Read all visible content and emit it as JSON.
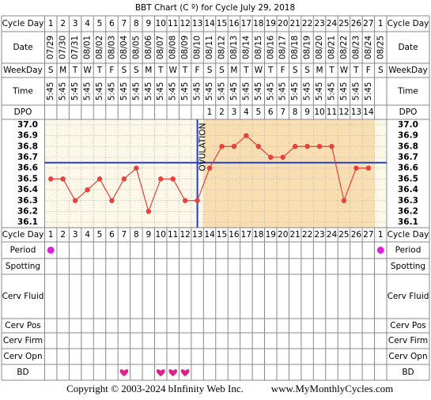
{
  "title": "BBT Chart (C º) for Cycle July 29, 2018",
  "row_labels": {
    "cycle_day": "Cycle Day",
    "date": "Date",
    "weekday": "WeekDay",
    "time": "Time",
    "dpo": "DPO",
    "period": "Period",
    "spotting": "Spotting",
    "cerv_fluid": "Cerv Fluid",
    "cerv_pos": "Cerv Pos",
    "cerv_firm": "Cerv Firm",
    "cerv_opn": "Cerv Opn",
    "bd": "BD"
  },
  "cycle_days": [
    1,
    2,
    3,
    4,
    5,
    6,
    7,
    8,
    9,
    10,
    11,
    12,
    13,
    14,
    15,
    16,
    17,
    18,
    19,
    20,
    21,
    22,
    23,
    24,
    25,
    26,
    27,
    1
  ],
  "dates": [
    "07/29",
    "07/30",
    "07/31",
    "08/01",
    "08/02",
    "08/03",
    "08/04",
    "08/05",
    "08/06",
    "08/07",
    "08/08",
    "08/09",
    "08/10",
    "08/11",
    "08/12",
    "08/13",
    "08/14",
    "08/15",
    "08/16",
    "08/17",
    "08/18",
    "08/19",
    "08/20",
    "08/21",
    "08/22",
    "08/23",
    "08/24",
    "08/25"
  ],
  "weekdays": [
    "S",
    "M",
    "T",
    "W",
    "T",
    "F",
    "S",
    "S",
    "M",
    "T",
    "W",
    "T",
    "F",
    "S",
    "S",
    "M",
    "T",
    "W",
    "T",
    "F",
    "S",
    "S",
    "M",
    "T",
    "W",
    "T",
    "F",
    "S"
  ],
  "times": [
    "5:45",
    "5:45",
    "5:45",
    "5:45",
    "5:45",
    "5:45",
    "5:45",
    "5:45",
    "5:45",
    "5:45",
    "5:45",
    "5:45",
    "5:45",
    "5:45",
    "5:45",
    "5:45",
    "5:45",
    "5:45",
    "5:45",
    "5:45",
    "5:45",
    "5:45",
    "5:45",
    "5:45",
    "5:45",
    "5:45",
    "5:45",
    null
  ],
  "dpo": [
    null,
    null,
    null,
    null,
    null,
    null,
    null,
    null,
    null,
    null,
    null,
    null,
    null,
    1,
    2,
    3,
    4,
    5,
    6,
    7,
    8,
    9,
    10,
    11,
    12,
    13,
    14,
    null
  ],
  "chart_data": {
    "type": "line",
    "color": "#e8403c",
    "values": [
      36.5,
      36.5,
      36.3,
      36.4,
      36.5,
      36.3,
      36.5,
      36.6,
      36.2,
      36.5,
      36.5,
      36.3,
      36.3,
      36.6,
      36.8,
      36.8,
      36.9,
      36.8,
      36.7,
      36.7,
      36.8,
      36.8,
      36.8,
      36.8,
      36.3,
      36.6,
      36.6,
      null
    ],
    "ylim": [
      36.05,
      37.05
    ],
    "yticks": [
      {
        "value": 37.0,
        "label": "37.0"
      },
      36.9,
      36.8,
      36.7,
      36.6,
      36.5,
      36.4,
      36.3,
      36.2,
      36.1
    ],
    "grid": true,
    "coverline": 36.65,
    "coverline_color": "#1f3fd0",
    "ovulation_label": "OVULATION",
    "ovulation_day": 13
  },
  "period": [
    true,
    false,
    false,
    false,
    false,
    false,
    false,
    false,
    false,
    false,
    false,
    false,
    false,
    false,
    false,
    false,
    false,
    false,
    false,
    false,
    false,
    false,
    false,
    false,
    false,
    false,
    false,
    true
  ],
  "bd": [
    false,
    false,
    false,
    false,
    false,
    false,
    true,
    false,
    false,
    true,
    true,
    true,
    false,
    false,
    false,
    false,
    false,
    false,
    false,
    false,
    false,
    false,
    false,
    false,
    false,
    false,
    false,
    false
  ],
  "footer": {
    "copyright": "Copyright © 2003-2024 bInfinity Web Inc.",
    "site": "www.MyMonthlyCycles.com"
  }
}
